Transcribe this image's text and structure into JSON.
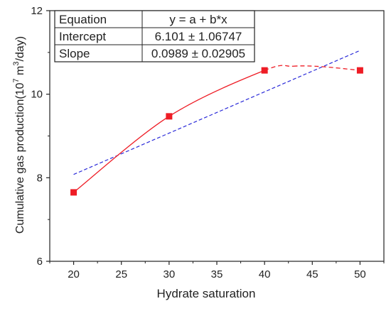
{
  "chart_data": {
    "type": "scatter",
    "xlabel": "Hydrate saturation",
    "ylabel": "Cumulative gas production(10",
    "ylabel_sup1": "7",
    "ylabel_mid": " m",
    "ylabel_sup2": "3",
    "ylabel_end": "/day)",
    "xlim": [
      17.5,
      52.5
    ],
    "ylim": [
      6,
      12
    ],
    "xticks": [
      "20",
      "25",
      "30",
      "35",
      "40",
      "45",
      "50"
    ],
    "yticks": [
      "6",
      "8",
      "10",
      "12"
    ],
    "xtick_values": [
      20,
      25,
      30,
      35,
      40,
      45,
      50
    ],
    "ytick_values": [
      6,
      8,
      10,
      12
    ],
    "series": [
      {
        "kind": "points",
        "x": [
          20,
          30,
          40,
          50
        ],
        "y": [
          7.65,
          9.47,
          10.57,
          10.57
        ],
        "color": "#ee1c25",
        "marker": "square"
      },
      {
        "kind": "smooth-curve",
        "x": [
          20,
          30,
          40,
          43,
          46,
          50
        ],
        "y": [
          7.65,
          9.47,
          10.57,
          10.67,
          10.66,
          10.57
        ],
        "color": "#ee1c25",
        "style": "solid-then-dashed"
      },
      {
        "kind": "linear-fit",
        "intercept": 6.101,
        "slope": 0.0989,
        "x_range": [
          20,
          50
        ],
        "color": "#2b2bd9",
        "style": "dashed"
      }
    ],
    "fit_table": {
      "rows": [
        [
          "Equation",
          "y = a + b*x"
        ],
        [
          "Intercept",
          "6.101 ± 1.06747"
        ],
        [
          "Slope",
          "0.0989 ± 0.02905"
        ]
      ]
    }
  }
}
